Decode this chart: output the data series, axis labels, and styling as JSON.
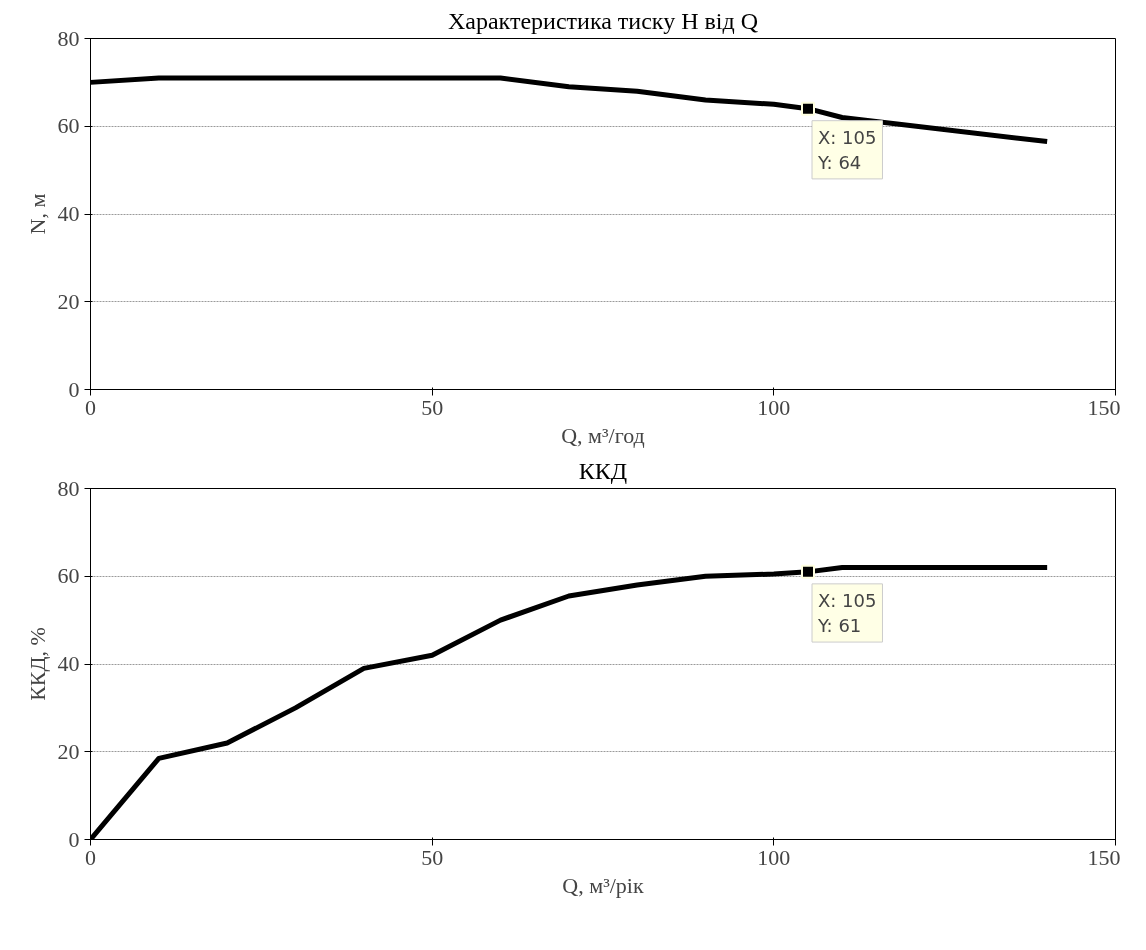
{
  "chart_data": [
    {
      "type": "line",
      "title": "Характеристика тиску Н від Q",
      "xlabel": "Q, м³/год",
      "ylabel": "N, м",
      "x": [
        0,
        10,
        60,
        70,
        80,
        90,
        100,
        105,
        110,
        140
      ],
      "series": [
        {
          "color": "#000000",
          "values": [
            70,
            71,
            71,
            69,
            68,
            66,
            65,
            64,
            62,
            56.5
          ]
        }
      ],
      "xlim": [
        0,
        150
      ],
      "xticks": [
        0,
        50,
        100,
        150
      ],
      "ylim": [
        0,
        80
      ],
      "yticks": [
        0,
        20,
        40,
        60,
        80
      ],
      "grid": "y",
      "marker": "none",
      "line_style": "solid",
      "annotations": [
        {
          "text": "X: 105\nY: 64",
          "x": 105,
          "y": 64
        }
      ]
    },
    {
      "type": "line",
      "title": "ККД",
      "xlabel": "Q, м³/рік",
      "ylabel": "ККД, %",
      "x": [
        0,
        10,
        20,
        30,
        40,
        50,
        60,
        70,
        80,
        90,
        100,
        105,
        110,
        140
      ],
      "series": [
        {
          "color": "#000000",
          "values": [
            0,
            18.5,
            22,
            30,
            39,
            42,
            50,
            55.5,
            58,
            60,
            60.5,
            61,
            62,
            62
          ]
        }
      ],
      "xlim": [
        0,
        150
      ],
      "xticks": [
        0,
        50,
        100,
        150
      ],
      "ylim": [
        0,
        80
      ],
      "yticks": [
        0,
        20,
        40,
        60,
        80
      ],
      "grid": "y",
      "marker": "none",
      "line_style": "solid",
      "annotations": [
        {
          "text": "X: 105\nY: 61",
          "x": 105,
          "y": 61
        }
      ]
    }
  ]
}
